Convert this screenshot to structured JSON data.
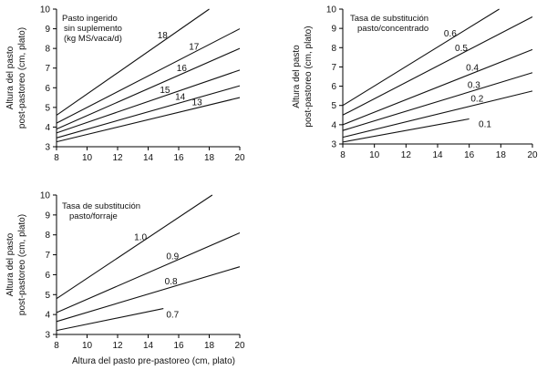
{
  "chart_data": [
    {
      "type": "line",
      "ylabel": [
        "Altura del pasto",
        "post-pastoreo (cm, plato)"
      ],
      "xlabel": "",
      "xlim": [
        8,
        20
      ],
      "ylim": [
        3,
        10
      ],
      "xticks": [
        "8",
        "10",
        "12",
        "14",
        "16",
        "18",
        "20"
      ],
      "yticks": [
        "3",
        "4",
        "5",
        "6",
        "7",
        "8",
        "9",
        "10"
      ],
      "legend_title": [
        "Pasto ingerido",
        "sin suplemento",
        "(kg MS/vaca/d)"
      ],
      "series": [
        {
          "name": "18",
          "x": [
            8,
            18.0
          ],
          "y": [
            4.6,
            10.0
          ]
        },
        {
          "name": "17",
          "x": [
            8,
            20
          ],
          "y": [
            4.2,
            9.0
          ]
        },
        {
          "name": "16",
          "x": [
            8,
            20
          ],
          "y": [
            3.9,
            8.0
          ]
        },
        {
          "name": "15",
          "x": [
            8,
            20
          ],
          "y": [
            3.7,
            6.9
          ]
        },
        {
          "name": "14",
          "x": [
            8,
            20
          ],
          "y": [
            3.45,
            6.1
          ]
        },
        {
          "name": "13",
          "x": [
            8,
            20
          ],
          "y": [
            3.25,
            5.5
          ]
        }
      ]
    },
    {
      "type": "line",
      "ylabel": [
        "Altura del pasto",
        "post-pastoreo (cm, plato)"
      ],
      "xlabel": "",
      "xlim": [
        8,
        20
      ],
      "ylim": [
        3,
        10
      ],
      "xticks": [
        "8",
        "10",
        "12",
        "14",
        "16",
        "18",
        "20"
      ],
      "yticks": [
        "3",
        "4",
        "5",
        "6",
        "7",
        "8",
        "9",
        "10"
      ],
      "legend_title": [
        "Tasa de substitución",
        "pasto/concentrado"
      ],
      "series": [
        {
          "name": "0.6",
          "x": [
            8,
            17.9
          ],
          "y": [
            5.0,
            10.0
          ]
        },
        {
          "name": "0.5",
          "x": [
            8,
            20
          ],
          "y": [
            4.5,
            9.6
          ]
        },
        {
          "name": "0.4",
          "x": [
            8,
            20
          ],
          "y": [
            4.0,
            7.9
          ]
        },
        {
          "name": "0.3",
          "x": [
            8,
            20
          ],
          "y": [
            3.7,
            6.7
          ]
        },
        {
          "name": "0.2",
          "x": [
            8,
            20
          ],
          "y": [
            3.35,
            5.75
          ]
        },
        {
          "name": "0.1",
          "x": [
            8,
            16
          ],
          "y": [
            3.1,
            4.3
          ]
        }
      ]
    },
    {
      "type": "line",
      "ylabel": [
        "Altura del pasto",
        "post-pastoreo (cm, plato)"
      ],
      "xlabel": "Altura del pasto pre-pastoreo (cm, plato)",
      "xlim": [
        8,
        20
      ],
      "ylim": [
        3,
        10
      ],
      "xticks": [
        "8",
        "10",
        "12",
        "14",
        "16",
        "18",
        "20"
      ],
      "yticks": [
        "3",
        "4",
        "5",
        "6",
        "7",
        "8",
        "9",
        "10"
      ],
      "legend_title": [
        "Tasa de substitución",
        "pasto/forraje"
      ],
      "series": [
        {
          "name": "1.0",
          "x": [
            8,
            18.2
          ],
          "y": [
            4.8,
            10.0
          ]
        },
        {
          "name": "0.9",
          "x": [
            8,
            20
          ],
          "y": [
            4.1,
            8.1
          ]
        },
        {
          "name": "0.8",
          "x": [
            8,
            20
          ],
          "y": [
            3.65,
            6.4
          ]
        },
        {
          "name": "0.7",
          "x": [
            8,
            15
          ],
          "y": [
            3.2,
            4.3
          ]
        }
      ]
    }
  ]
}
